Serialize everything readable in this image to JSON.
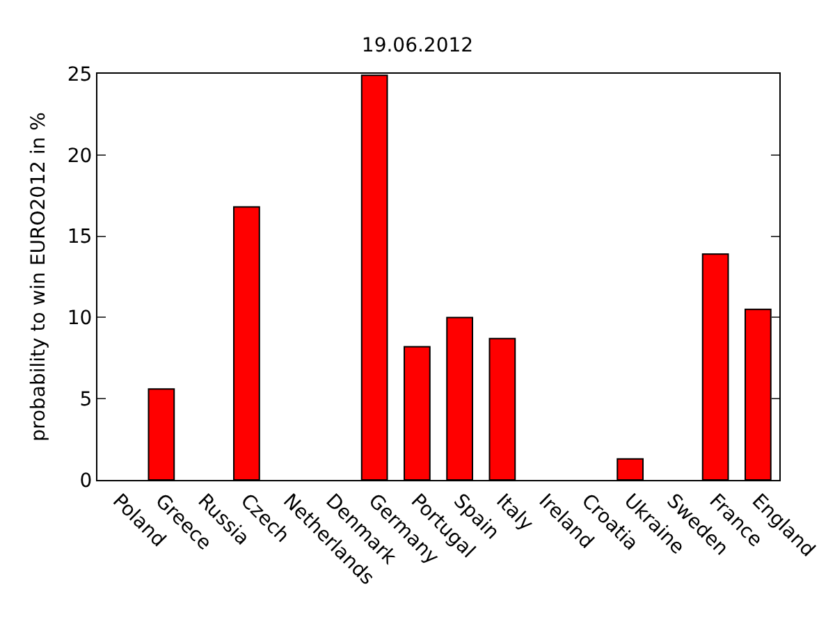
{
  "chart_data": {
    "type": "bar",
    "title": "19.06.2012",
    "ylabel": "probability to win EURO2012 in %",
    "categories": [
      "Poland",
      "Greece",
      "Russia",
      "Czech",
      "Netherlands",
      "Denmark",
      "Germany",
      "Portugal",
      "Spain",
      "Italy",
      "Ireland",
      "Croatia",
      "Ukraine",
      "Sweden",
      "France",
      "England"
    ],
    "values": [
      0,
      5.6,
      0,
      16.8,
      0,
      0,
      24.9,
      8.2,
      10.0,
      8.7,
      0,
      0,
      1.3,
      0,
      13.9,
      10.5
    ],
    "color": "#ff0000",
    "ylim": [
      0,
      25
    ],
    "yticks": [
      0,
      5,
      10,
      15,
      20,
      25
    ],
    "grid": false,
    "legend": false
  }
}
